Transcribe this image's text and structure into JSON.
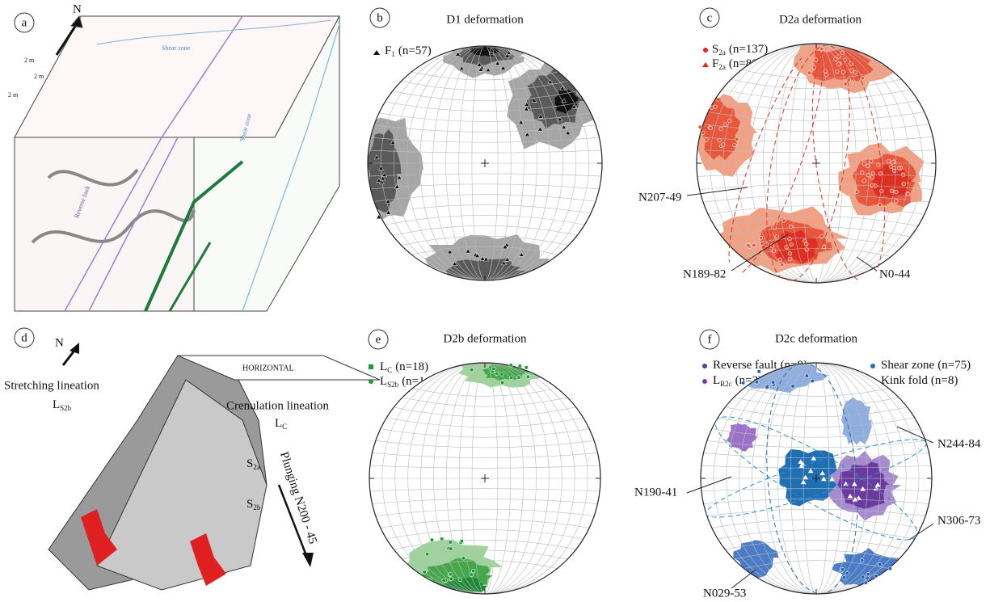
{
  "panels": {
    "a": {
      "label": "a",
      "north": "N",
      "scale": [
        "2 m",
        "2 m",
        "2 m"
      ],
      "notes": [
        "Shear zone",
        "Reverse fault",
        "Shear zone"
      ]
    },
    "b": {
      "label": "b",
      "title": "D1 deformation",
      "legend": [
        {
          "main": "F",
          "sub": "1",
          "count": "(n=57)"
        }
      ]
    },
    "c": {
      "label": "c",
      "title": "D2a deformation",
      "legend": [
        {
          "main": "S",
          "sub": "2a",
          "count": "(n=137)"
        },
        {
          "main": "F",
          "sub": "2a",
          "count": "(n=82)"
        }
      ],
      "planes": [
        "N207-49",
        "N189-82",
        "N0-44"
      ]
    },
    "d": {
      "label": "d",
      "north": "N",
      "notes": [
        "Stretching lineation",
        "Crenulation lineation",
        "HORIZONTAL",
        "Plunging N200 - 45"
      ],
      "symbols": [
        {
          "main": "L",
          "sub": "S2b"
        },
        {
          "main": "L",
          "sub": "C"
        },
        {
          "main": "S",
          "sub": "2a"
        },
        {
          "main": "S",
          "sub": "2b"
        }
      ]
    },
    "e": {
      "label": "e",
      "title": "D2b deformation",
      "legend": [
        {
          "main": "L",
          "sub": "C",
          "count": "(n=18)"
        },
        {
          "main": "L",
          "sub": "S2b",
          "count": "(n=14)"
        }
      ]
    },
    "f": {
      "label": "f",
      "title": "D2c deformation",
      "legend": [
        {
          "main": "Reverse fault",
          "sub": "",
          "count": "(n=9)"
        },
        {
          "main": "L",
          "sub": "R2c",
          "count": "(n=3)"
        },
        {
          "main": "Shear zone",
          "sub": "",
          "count": "(n=75)"
        },
        {
          "main": "Kink fold",
          "sub": "",
          "count": "(n=8)"
        }
      ],
      "planes": [
        "N244-84",
        "N190-41",
        "N306-73",
        "N029-53"
      ]
    }
  }
}
